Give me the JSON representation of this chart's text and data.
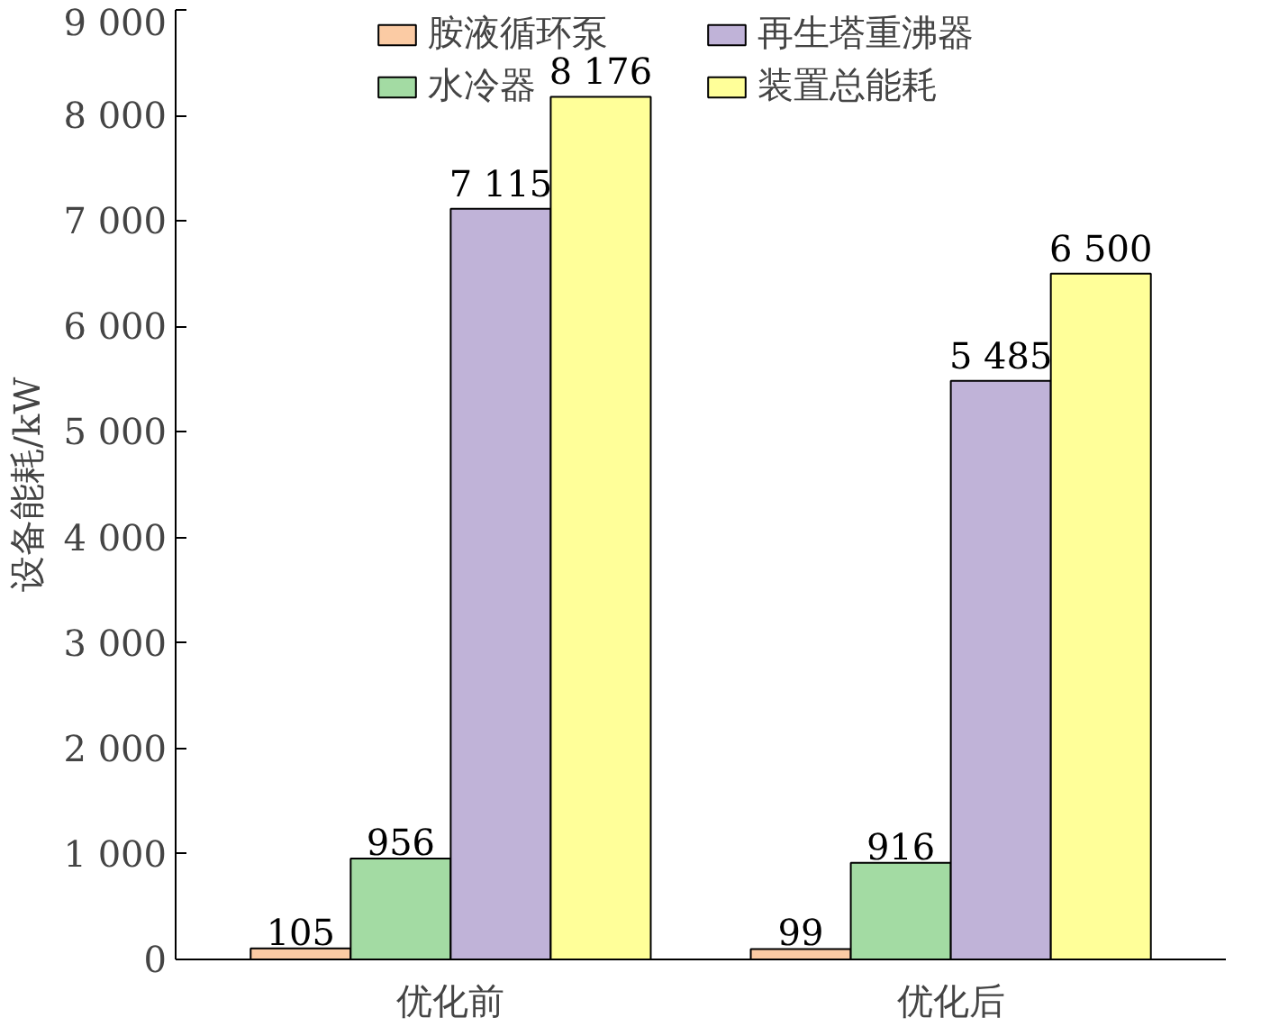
{
  "chart_data": {
    "type": "bar",
    "ylabel": "设备能耗/kW",
    "categories": [
      "优化前",
      "优化后"
    ],
    "series": [
      {
        "name": "胺液循环泵",
        "color": "#fbcba4",
        "values": [
          105,
          99
        ],
        "value_labels": [
          "105",
          "99"
        ]
      },
      {
        "name": "水冷器",
        "color": "#a3dba3",
        "values": [
          956,
          916
        ],
        "value_labels": [
          "956",
          "916"
        ]
      },
      {
        "name": "再生塔重沸器",
        "color": "#c0b3d8",
        "values": [
          7115,
          5485
        ],
        "value_labels": [
          "7 115",
          "5 485"
        ]
      },
      {
        "name": "装置总能耗",
        "color": "#ffff99",
        "values": [
          8176,
          6500
        ],
        "value_labels": [
          "8 176",
          "6 500"
        ]
      }
    ],
    "ylim": [
      0,
      9000
    ],
    "yticks": [
      0,
      {
        "value": 1000,
        "label": "1 000"
      },
      {
        "value": 2000,
        "label": "2 000"
      },
      {
        "value": 3000,
        "label": "3 000"
      },
      {
        "value": 4000,
        "label": "4 000"
      },
      {
        "value": 5000,
        "label": "5 000"
      },
      {
        "value": 6000,
        "label": "6 000"
      },
      {
        "value": 7000,
        "label": "7 000"
      },
      {
        "value": 8000,
        "label": "8 000"
      },
      {
        "value": 9000,
        "label": "9 000"
      }
    ],
    "legend": "top",
    "grid": false
  }
}
